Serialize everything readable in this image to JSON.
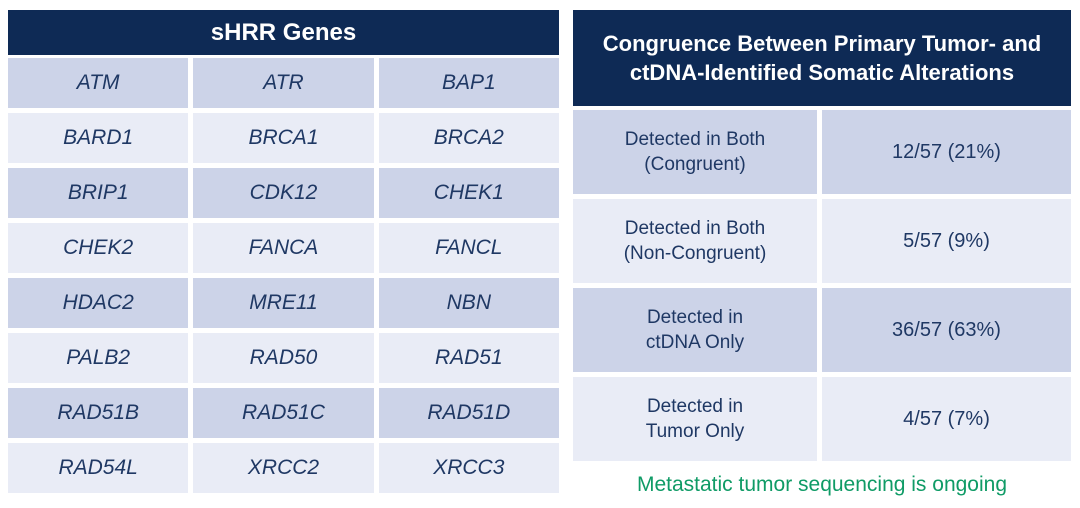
{
  "colors": {
    "header_bg": "#0e2a55",
    "header_text": "#ffffff",
    "row_dark": "#ccd3e8",
    "row_light": "#e9ecf6",
    "text_navy": "#1f3864",
    "note_green": "#0f9b66"
  },
  "genes_table": {
    "title": "sHRR Genes",
    "rows": [
      [
        "ATM",
        "ATR",
        "BAP1"
      ],
      [
        "BARD1",
        "BRCA1",
        "BRCA2"
      ],
      [
        "BRIP1",
        "CDK12",
        "CHEK1"
      ],
      [
        "CHEK2",
        "FANCA",
        "FANCL"
      ],
      [
        "HDAC2",
        "MRE11",
        "NBN"
      ],
      [
        "PALB2",
        "RAD50",
        "RAD51"
      ],
      [
        "RAD51B",
        "RAD51C",
        "RAD51D"
      ],
      [
        "RAD54L",
        "XRCC2",
        "XRCC3"
      ]
    ]
  },
  "congruence_table": {
    "title_line1": "Congruence Between Primary Tumor- and",
    "title_line2": "ctDNA-Identified Somatic Alterations",
    "rows": [
      {
        "label_line1": "Detected in Both",
        "label_line2": "(Congruent)",
        "value": "12/57 (21%)"
      },
      {
        "label_line1": "Detected in Both",
        "label_line2": "(Non-Congruent)",
        "value": "5/57 (9%)"
      },
      {
        "label_line1": "Detected in",
        "label_line2": "ctDNA Only",
        "value": "36/57 (63%)"
      },
      {
        "label_line1": "Detected in",
        "label_line2": "Tumor Only",
        "value": "4/57 (7%)"
      }
    ],
    "footnote": "Metastatic tumor sequencing is ongoing"
  }
}
